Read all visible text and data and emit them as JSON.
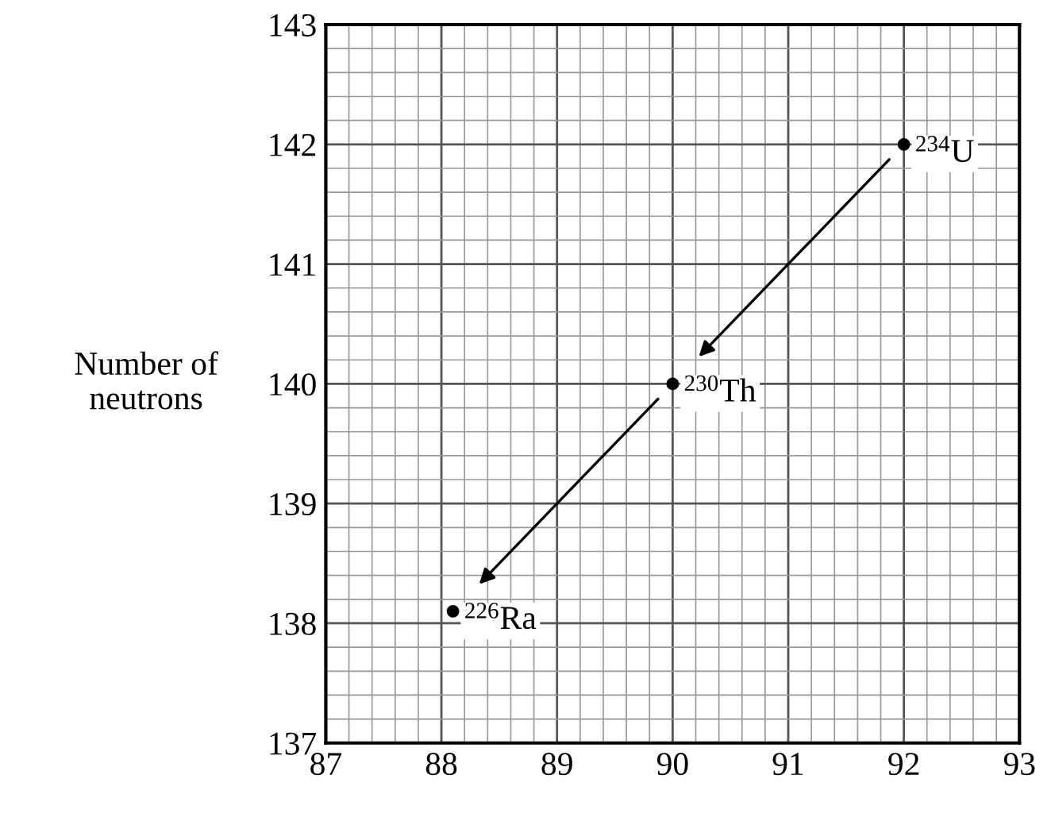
{
  "chart_data": {
    "type": "scatter",
    "ylabel": "Number of\nneutrons",
    "series": [
      {
        "color": "#000000",
        "x": [
          92,
          90,
          88.1
        ],
        "values": [
          142,
          140,
          138.1
        ]
      }
    ],
    "annotations": [
      {
        "text": "$^{234}$U",
        "x": 92,
        "y": 142
      },
      {
        "text": "$^{230}$Th",
        "x": 90,
        "y": 140
      },
      {
        "text": "$^{226}$Ra",
        "x": 88.1,
        "y": 138.1
      }
    ],
    "xlim": [
      87,
      93
    ],
    "ylim": [
      137,
      143
    ],
    "xticks": [
      87,
      88,
      89,
      90,
      91,
      92,
      93
    ],
    "yticks": [
      137,
      138,
      139,
      140,
      141,
      142,
      143
    ],
    "grid": true,
    "marker": "circle"
  }
}
